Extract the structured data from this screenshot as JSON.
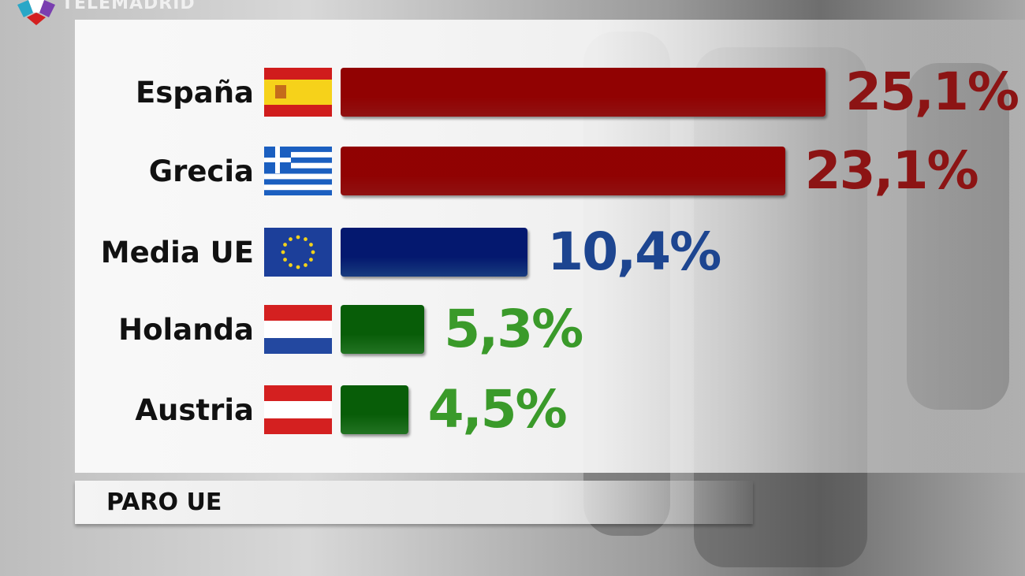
{
  "logo": {
    "text": "TELEMADRID"
  },
  "chart_data": {
    "type": "bar",
    "orientation": "horizontal",
    "title": "PARO UE",
    "categories": [
      "España",
      "Grecia",
      "Media UE",
      "Holanda",
      "Austria"
    ],
    "values": [
      25.1,
      23.1,
      10.4,
      5.3,
      4.5
    ],
    "labels": [
      "25,1%",
      "23,1%",
      "10,4%",
      "5,3%",
      "4,5%"
    ],
    "flags": [
      "spain-flag",
      "greece-flag",
      "eu-flag",
      "netherlands-flag",
      "austria-flag"
    ],
    "colors": [
      "#c01818",
      "#c01818",
      "#1f4fa8",
      "#2e9a2e",
      "#2e9a2e"
    ],
    "label_colors": [
      "#8c1414",
      "#8c1414",
      "#1d4590",
      "#3a9a2a",
      "#3a9a2a"
    ],
    "grid": false
  }
}
